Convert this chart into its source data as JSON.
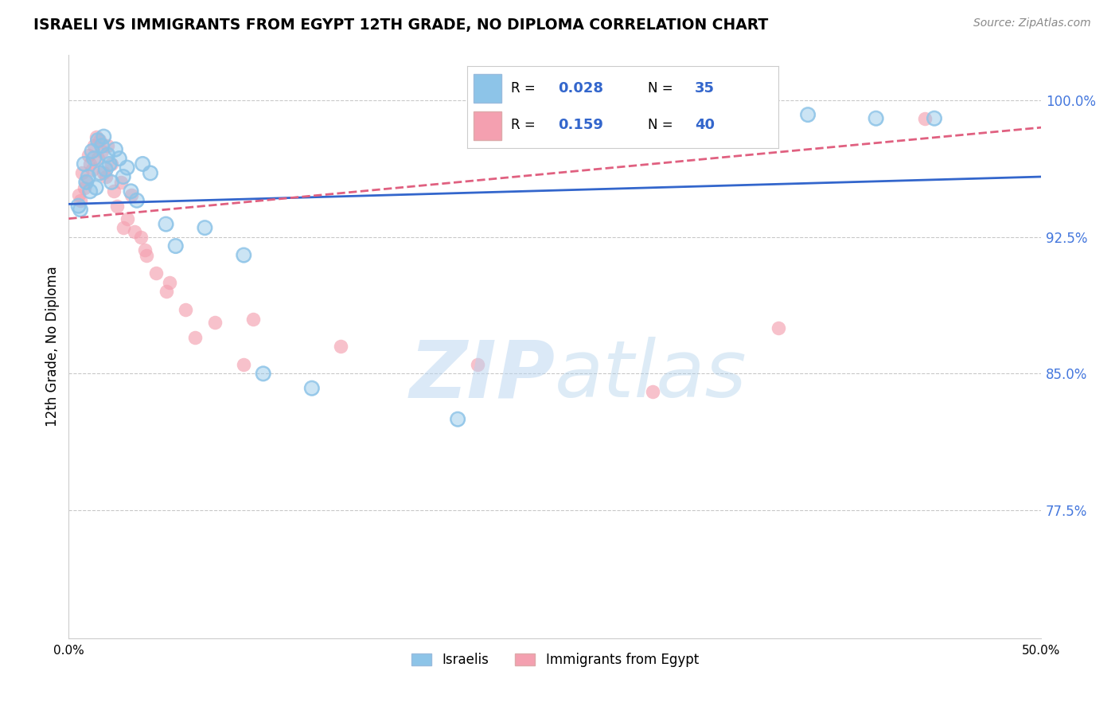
{
  "title": "ISRAELI VS IMMIGRANTS FROM EGYPT 12TH GRADE, NO DIPLOMA CORRELATION CHART",
  "source": "Source: ZipAtlas.com",
  "ylabel": "12th Grade, No Diploma",
  "legend_label1": "Israelis",
  "legend_label2": "Immigrants from Egypt",
  "R1": "0.028",
  "N1": "35",
  "R2": "0.159",
  "N2": "40",
  "xlim": [
    0.0,
    50.0
  ],
  "ylim": [
    70.5,
    102.5
  ],
  "yticks": [
    77.5,
    85.0,
    92.5,
    100.0
  ],
  "color_blue": "#8DC4E8",
  "color_pink": "#F4A0B0",
  "color_blue_line": "#3366CC",
  "color_pink_line": "#E06080",
  "watermark_zip": "ZIP",
  "watermark_atlas": "atlas",
  "blue_points_x": [
    0.5,
    0.8,
    1.0,
    1.2,
    1.3,
    1.4,
    1.5,
    1.6,
    1.7,
    1.8,
    1.9,
    2.0,
    2.1,
    2.2,
    2.4,
    2.6,
    2.8,
    3.0,
    3.2,
    3.5,
    3.8,
    4.2,
    5.0,
    5.5,
    7.0,
    9.0,
    10.0,
    12.5,
    20.0,
    38.0,
    41.5,
    44.5,
    0.6,
    0.9,
    1.1
  ],
  "blue_points_y": [
    94.2,
    96.5,
    95.8,
    97.2,
    96.8,
    95.2,
    97.8,
    96.0,
    97.5,
    98.0,
    96.2,
    97.0,
    96.5,
    95.5,
    97.3,
    96.8,
    95.8,
    96.3,
    95.0,
    94.5,
    96.5,
    96.0,
    93.2,
    92.0,
    93.0,
    91.5,
    85.0,
    84.2,
    82.5,
    99.2,
    99.0,
    99.0,
    94.0,
    95.5,
    95.0
  ],
  "pink_points_x": [
    0.5,
    0.7,
    0.9,
    1.0,
    1.1,
    1.3,
    1.4,
    1.5,
    1.6,
    1.7,
    1.8,
    1.9,
    2.0,
    2.2,
    2.3,
    2.5,
    2.7,
    3.0,
    3.2,
    3.4,
    3.7,
    4.0,
    4.5,
    5.2,
    6.0,
    7.5,
    9.5,
    14.0,
    21.0,
    30.0,
    36.5,
    0.6,
    0.8,
    1.2,
    2.8,
    3.9,
    5.0,
    6.5,
    9.0,
    44.0
  ],
  "pink_points_y": [
    94.8,
    96.0,
    95.5,
    97.0,
    96.5,
    97.5,
    98.0,
    96.8,
    97.8,
    97.2,
    96.0,
    95.8,
    97.5,
    96.5,
    95.0,
    94.2,
    95.5,
    93.5,
    94.8,
    92.8,
    92.5,
    91.5,
    90.5,
    90.0,
    88.5,
    87.8,
    88.0,
    86.5,
    85.5,
    84.0,
    87.5,
    94.5,
    95.2,
    96.2,
    93.0,
    91.8,
    89.5,
    87.0,
    85.5,
    99.0
  ],
  "blue_trend_x0": 0.0,
  "blue_trend_y0": 94.3,
  "blue_trend_x1": 50.0,
  "blue_trend_y1": 95.8,
  "pink_trend_x0": 0.0,
  "pink_trend_y0": 93.5,
  "pink_trend_x1": 50.0,
  "pink_trend_y1": 98.5
}
